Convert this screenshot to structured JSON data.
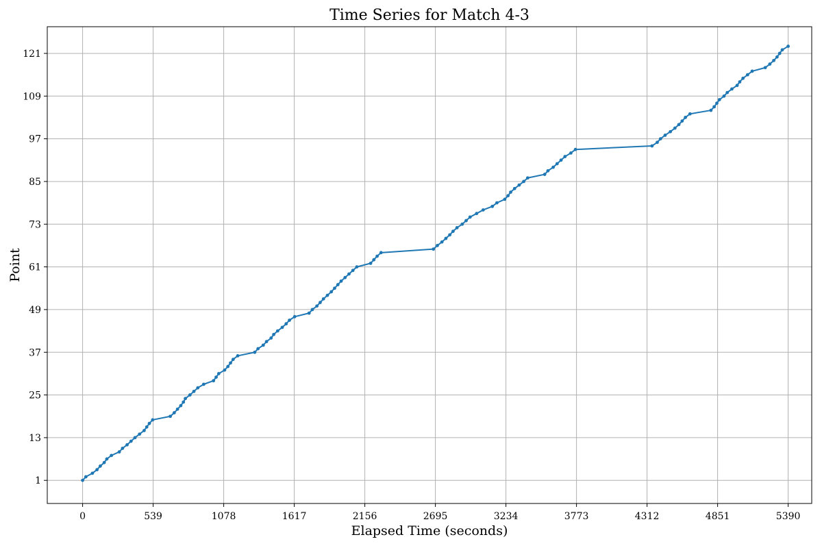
{
  "chart_data": {
    "type": "line",
    "title": "Time Series for Match 4-3",
    "xlabel": "Elapsed Time (seconds)",
    "ylabel": "Point",
    "xlim": [
      -270,
      5570
    ],
    "ylim": [
      -5.5,
      128.5
    ],
    "x_ticks": [
      0,
      539,
      1078,
      1617,
      2156,
      2695,
      3234,
      3773,
      4312,
      4851,
      5390
    ],
    "y_ticks": [
      1,
      13,
      25,
      37,
      49,
      61,
      73,
      85,
      97,
      109,
      121
    ],
    "grid": true,
    "series": [
      {
        "color": "#1f77b4",
        "marker": "circle",
        "points": [
          [
            0,
            1
          ],
          [
            25,
            2
          ],
          [
            75,
            3
          ],
          [
            110,
            4
          ],
          [
            135,
            5
          ],
          [
            165,
            6
          ],
          [
            185,
            7
          ],
          [
            220,
            8
          ],
          [
            280,
            9
          ],
          [
            305,
            10
          ],
          [
            340,
            11
          ],
          [
            370,
            12
          ],
          [
            400,
            13
          ],
          [
            435,
            14
          ],
          [
            470,
            15
          ],
          [
            490,
            16
          ],
          [
            510,
            17
          ],
          [
            535,
            18
          ],
          [
            670,
            19
          ],
          [
            700,
            20
          ],
          [
            725,
            21
          ],
          [
            750,
            22
          ],
          [
            770,
            23
          ],
          [
            785,
            24
          ],
          [
            820,
            25
          ],
          [
            850,
            26
          ],
          [
            880,
            27
          ],
          [
            925,
            28
          ],
          [
            1000,
            29
          ],
          [
            1020,
            30
          ],
          [
            1040,
            31
          ],
          [
            1085,
            32
          ],
          [
            1110,
            33
          ],
          [
            1130,
            34
          ],
          [
            1150,
            35
          ],
          [
            1185,
            36
          ],
          [
            1315,
            37
          ],
          [
            1340,
            38
          ],
          [
            1380,
            39
          ],
          [
            1405,
            40
          ],
          [
            1440,
            41
          ],
          [
            1460,
            42
          ],
          [
            1490,
            43
          ],
          [
            1525,
            44
          ],
          [
            1555,
            45
          ],
          [
            1580,
            46
          ],
          [
            1620,
            47
          ],
          [
            1730,
            48
          ],
          [
            1755,
            49
          ],
          [
            1790,
            50
          ],
          [
            1815,
            51
          ],
          [
            1840,
            52
          ],
          [
            1870,
            53
          ],
          [
            1900,
            54
          ],
          [
            1925,
            55
          ],
          [
            1950,
            56
          ],
          [
            1975,
            57
          ],
          [
            2005,
            58
          ],
          [
            2035,
            59
          ],
          [
            2065,
            60
          ],
          [
            2095,
            61
          ],
          [
            2200,
            62
          ],
          [
            2225,
            63
          ],
          [
            2250,
            64
          ],
          [
            2280,
            65
          ],
          [
            2680,
            66
          ],
          [
            2710,
            67
          ],
          [
            2745,
            68
          ],
          [
            2775,
            69
          ],
          [
            2805,
            70
          ],
          [
            2830,
            71
          ],
          [
            2860,
            72
          ],
          [
            2900,
            73
          ],
          [
            2930,
            74
          ],
          [
            2960,
            75
          ],
          [
            3010,
            76
          ],
          [
            3060,
            77
          ],
          [
            3130,
            78
          ],
          [
            3165,
            79
          ],
          [
            3225,
            80
          ],
          [
            3250,
            81
          ],
          [
            3270,
            82
          ],
          [
            3300,
            83
          ],
          [
            3335,
            84
          ],
          [
            3370,
            85
          ],
          [
            3400,
            86
          ],
          [
            3530,
            87
          ],
          [
            3555,
            88
          ],
          [
            3595,
            89
          ],
          [
            3625,
            90
          ],
          [
            3655,
            91
          ],
          [
            3685,
            92
          ],
          [
            3730,
            93
          ],
          [
            3765,
            94
          ],
          [
            4350,
            95
          ],
          [
            4390,
            96
          ],
          [
            4415,
            97
          ],
          [
            4450,
            98
          ],
          [
            4490,
            99
          ],
          [
            4525,
            100
          ],
          [
            4555,
            101
          ],
          [
            4580,
            102
          ],
          [
            4605,
            103
          ],
          [
            4640,
            104
          ],
          [
            4800,
            105
          ],
          [
            4825,
            106
          ],
          [
            4845,
            107
          ],
          [
            4865,
            108
          ],
          [
            4900,
            109
          ],
          [
            4925,
            110
          ],
          [
            4960,
            111
          ],
          [
            5000,
            112
          ],
          [
            5020,
            113
          ],
          [
            5045,
            114
          ],
          [
            5080,
            115
          ],
          [
            5115,
            116
          ],
          [
            5215,
            117
          ],
          [
            5250,
            118
          ],
          [
            5280,
            119
          ],
          [
            5305,
            120
          ],
          [
            5325,
            121
          ],
          [
            5345,
            122
          ],
          [
            5390,
            123
          ]
        ]
      }
    ]
  }
}
